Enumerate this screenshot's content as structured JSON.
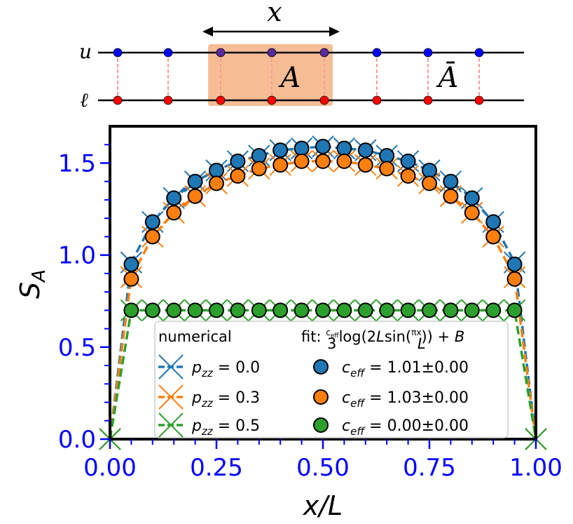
{
  "diagram": {
    "top_label": "x",
    "row_u_label": "u",
    "row_l_label": "ℓ",
    "region_label": "A",
    "complement_label": "Ā",
    "colors": {
      "u_dot": "#0000ff",
      "l_dot": "#ff0000",
      "region": "#f4b183",
      "link": "#ff9999"
    }
  },
  "chart_data": {
    "type": "line",
    "xlabel": "x/L",
    "ylabel": "S_A",
    "xlim": [
      0.0,
      1.0
    ],
    "ylim": [
      0.0,
      1.7
    ],
    "xticks": [
      "0.00",
      "0.25",
      "0.50",
      "0.75",
      "1.00"
    ],
    "yticks": [
      "0.0",
      "0.5",
      "1.0",
      "1.5"
    ],
    "x": [
      0.0,
      0.05,
      0.1,
      0.15,
      0.2,
      0.25,
      0.3,
      0.35,
      0.4,
      0.45,
      0.5,
      0.55,
      0.6,
      0.65,
      0.7,
      0.75,
      0.8,
      0.85,
      0.9,
      0.95,
      1.0
    ],
    "series": [
      {
        "name": "p_zz = 0.0",
        "color": "#1f77b4",
        "numerical": [
          0.0,
          0.96,
          1.18,
          1.31,
          1.4,
          1.46,
          1.51,
          1.54,
          1.57,
          1.58,
          1.59,
          1.58,
          1.57,
          1.54,
          1.51,
          1.46,
          1.4,
          1.31,
          1.18,
          0.96,
          0.0
        ],
        "fit": [
          0.95,
          1.18,
          1.31,
          1.4,
          1.46,
          1.51,
          1.54,
          1.57,
          1.58,
          1.59,
          1.58,
          1.57,
          1.54,
          1.51,
          1.46,
          1.4,
          1.31,
          1.18,
          0.95
        ]
      },
      {
        "name": "p_zz = 0.3",
        "color": "#ff7f0e",
        "numerical": [
          0.0,
          0.88,
          1.1,
          1.23,
          1.32,
          1.39,
          1.43,
          1.47,
          1.49,
          1.51,
          1.51,
          1.51,
          1.49,
          1.47,
          1.43,
          1.39,
          1.32,
          1.23,
          1.1,
          0.88,
          0.0
        ],
        "fit": [
          0.87,
          1.1,
          1.23,
          1.32,
          1.39,
          1.43,
          1.47,
          1.49,
          1.51,
          1.51,
          1.51,
          1.49,
          1.47,
          1.43,
          1.39,
          1.32,
          1.23,
          1.1,
          0.87
        ]
      },
      {
        "name": "p_zz = 0.5",
        "color": "#2ca02c",
        "numerical": [
          0.0,
          0.7,
          0.7,
          0.7,
          0.7,
          0.7,
          0.7,
          0.7,
          0.7,
          0.7,
          0.7,
          0.7,
          0.7,
          0.7,
          0.7,
          0.7,
          0.7,
          0.7,
          0.7,
          0.7,
          0.0
        ],
        "fit": [
          0.7,
          0.7,
          0.7,
          0.7,
          0.7,
          0.7,
          0.7,
          0.7,
          0.7,
          0.7,
          0.7,
          0.7,
          0.7,
          0.7,
          0.7,
          0.7,
          0.7,
          0.7,
          0.7
        ]
      }
    ],
    "legend": {
      "left_title": "numerical",
      "right_title": "fit: (c_eff/3) log(2L sin(πx/L)) + B",
      "left_entries": [
        "p_zz = 0.0",
        "p_zz = 0.3",
        "p_zz = 0.5"
      ],
      "right_entries": [
        "c_eff = 1.01±0.00",
        "c_eff = 1.03±0.00",
        "c_eff = 0.00±0.00"
      ],
      "placement": "bottom-center"
    }
  }
}
